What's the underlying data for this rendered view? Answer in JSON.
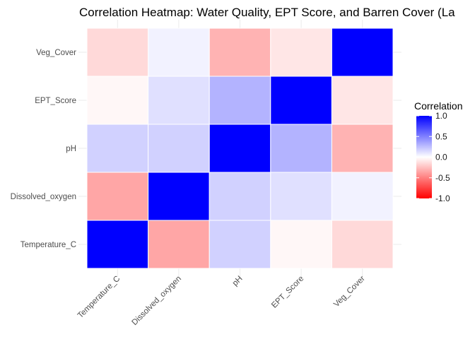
{
  "chart_data": {
    "type": "heatmap",
    "title": "Correlation Heatmap: Water Quality, EPT Score, and Barren Cover (La",
    "x_categories": [
      "Temperature_C",
      "Dissolved_oxygen",
      "pH",
      "EPT_Score",
      "Veg_Cover"
    ],
    "y_categories": [
      "Temperature_C",
      "Dissolved_oxygen",
      "pH",
      "EPT_Score",
      "Veg_Cover"
    ],
    "values": [
      [
        1.0,
        -0.35,
        0.18,
        -0.03,
        -0.15
      ],
      [
        -0.35,
        1.0,
        0.18,
        0.12,
        0.05
      ],
      [
        0.18,
        0.18,
        1.0,
        0.3,
        -0.3
      ],
      [
        -0.03,
        0.12,
        0.3,
        1.0,
        -0.1
      ],
      [
        -0.15,
        0.05,
        -0.3,
        -0.1,
        1.0
      ]
    ],
    "color_scale": {
      "low": "#ff0000",
      "mid": "#ffffff",
      "high": "#0000ff",
      "limits": [
        -1,
        1
      ]
    },
    "legend": {
      "title": "Correlation",
      "ticks": [
        "1.0",
        "0.5",
        "0.0",
        "-0.5",
        "-1.0"
      ],
      "placement": "right"
    },
    "grid": true
  }
}
